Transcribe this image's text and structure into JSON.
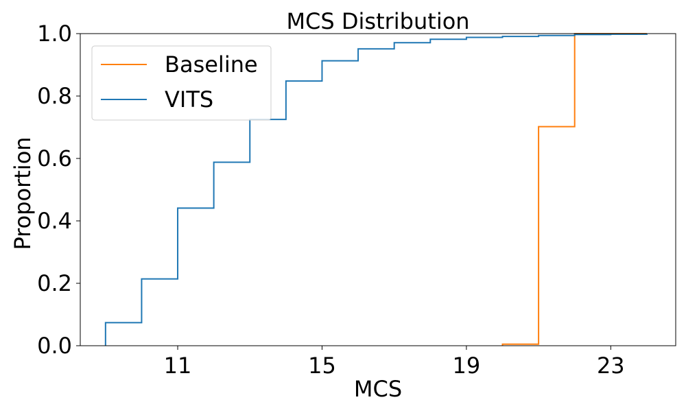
{
  "chart_data": {
    "type": "line",
    "step": "post",
    "title": "MCS Distribution",
    "xlabel": "MCS",
    "ylabel": "Proportion",
    "xlim": [
      8.3,
      24.8
    ],
    "ylim": [
      0.0,
      1.0
    ],
    "xticks": [
      11,
      15,
      19,
      23
    ],
    "yticks": [
      0.0,
      0.2,
      0.4,
      0.6,
      0.8,
      1.0
    ],
    "xtick_labels": [
      "11",
      "15",
      "19",
      "23"
    ],
    "ytick_labels": [
      "0.0",
      "0.2",
      "0.4",
      "0.6",
      "0.8",
      "1.0"
    ],
    "grid": false,
    "legend_position": "upper-left",
    "series": [
      {
        "name": "Baseline",
        "color": "#ff7f0e",
        "x": [
          20,
          21,
          22,
          24
        ],
        "y": [
          0.005,
          0.702,
          1.0,
          1.0
        ]
      },
      {
        "name": "VITS",
        "color": "#1f77b4",
        "x": [
          9,
          10,
          11,
          12,
          13,
          14,
          15,
          16,
          17,
          18,
          19,
          20,
          21,
          22,
          23,
          24
        ],
        "y": [
          0.074,
          0.214,
          0.441,
          0.588,
          0.725,
          0.848,
          0.913,
          0.951,
          0.971,
          0.982,
          0.988,
          0.991,
          0.994,
          0.997,
          0.998,
          0.999
        ]
      }
    ]
  }
}
